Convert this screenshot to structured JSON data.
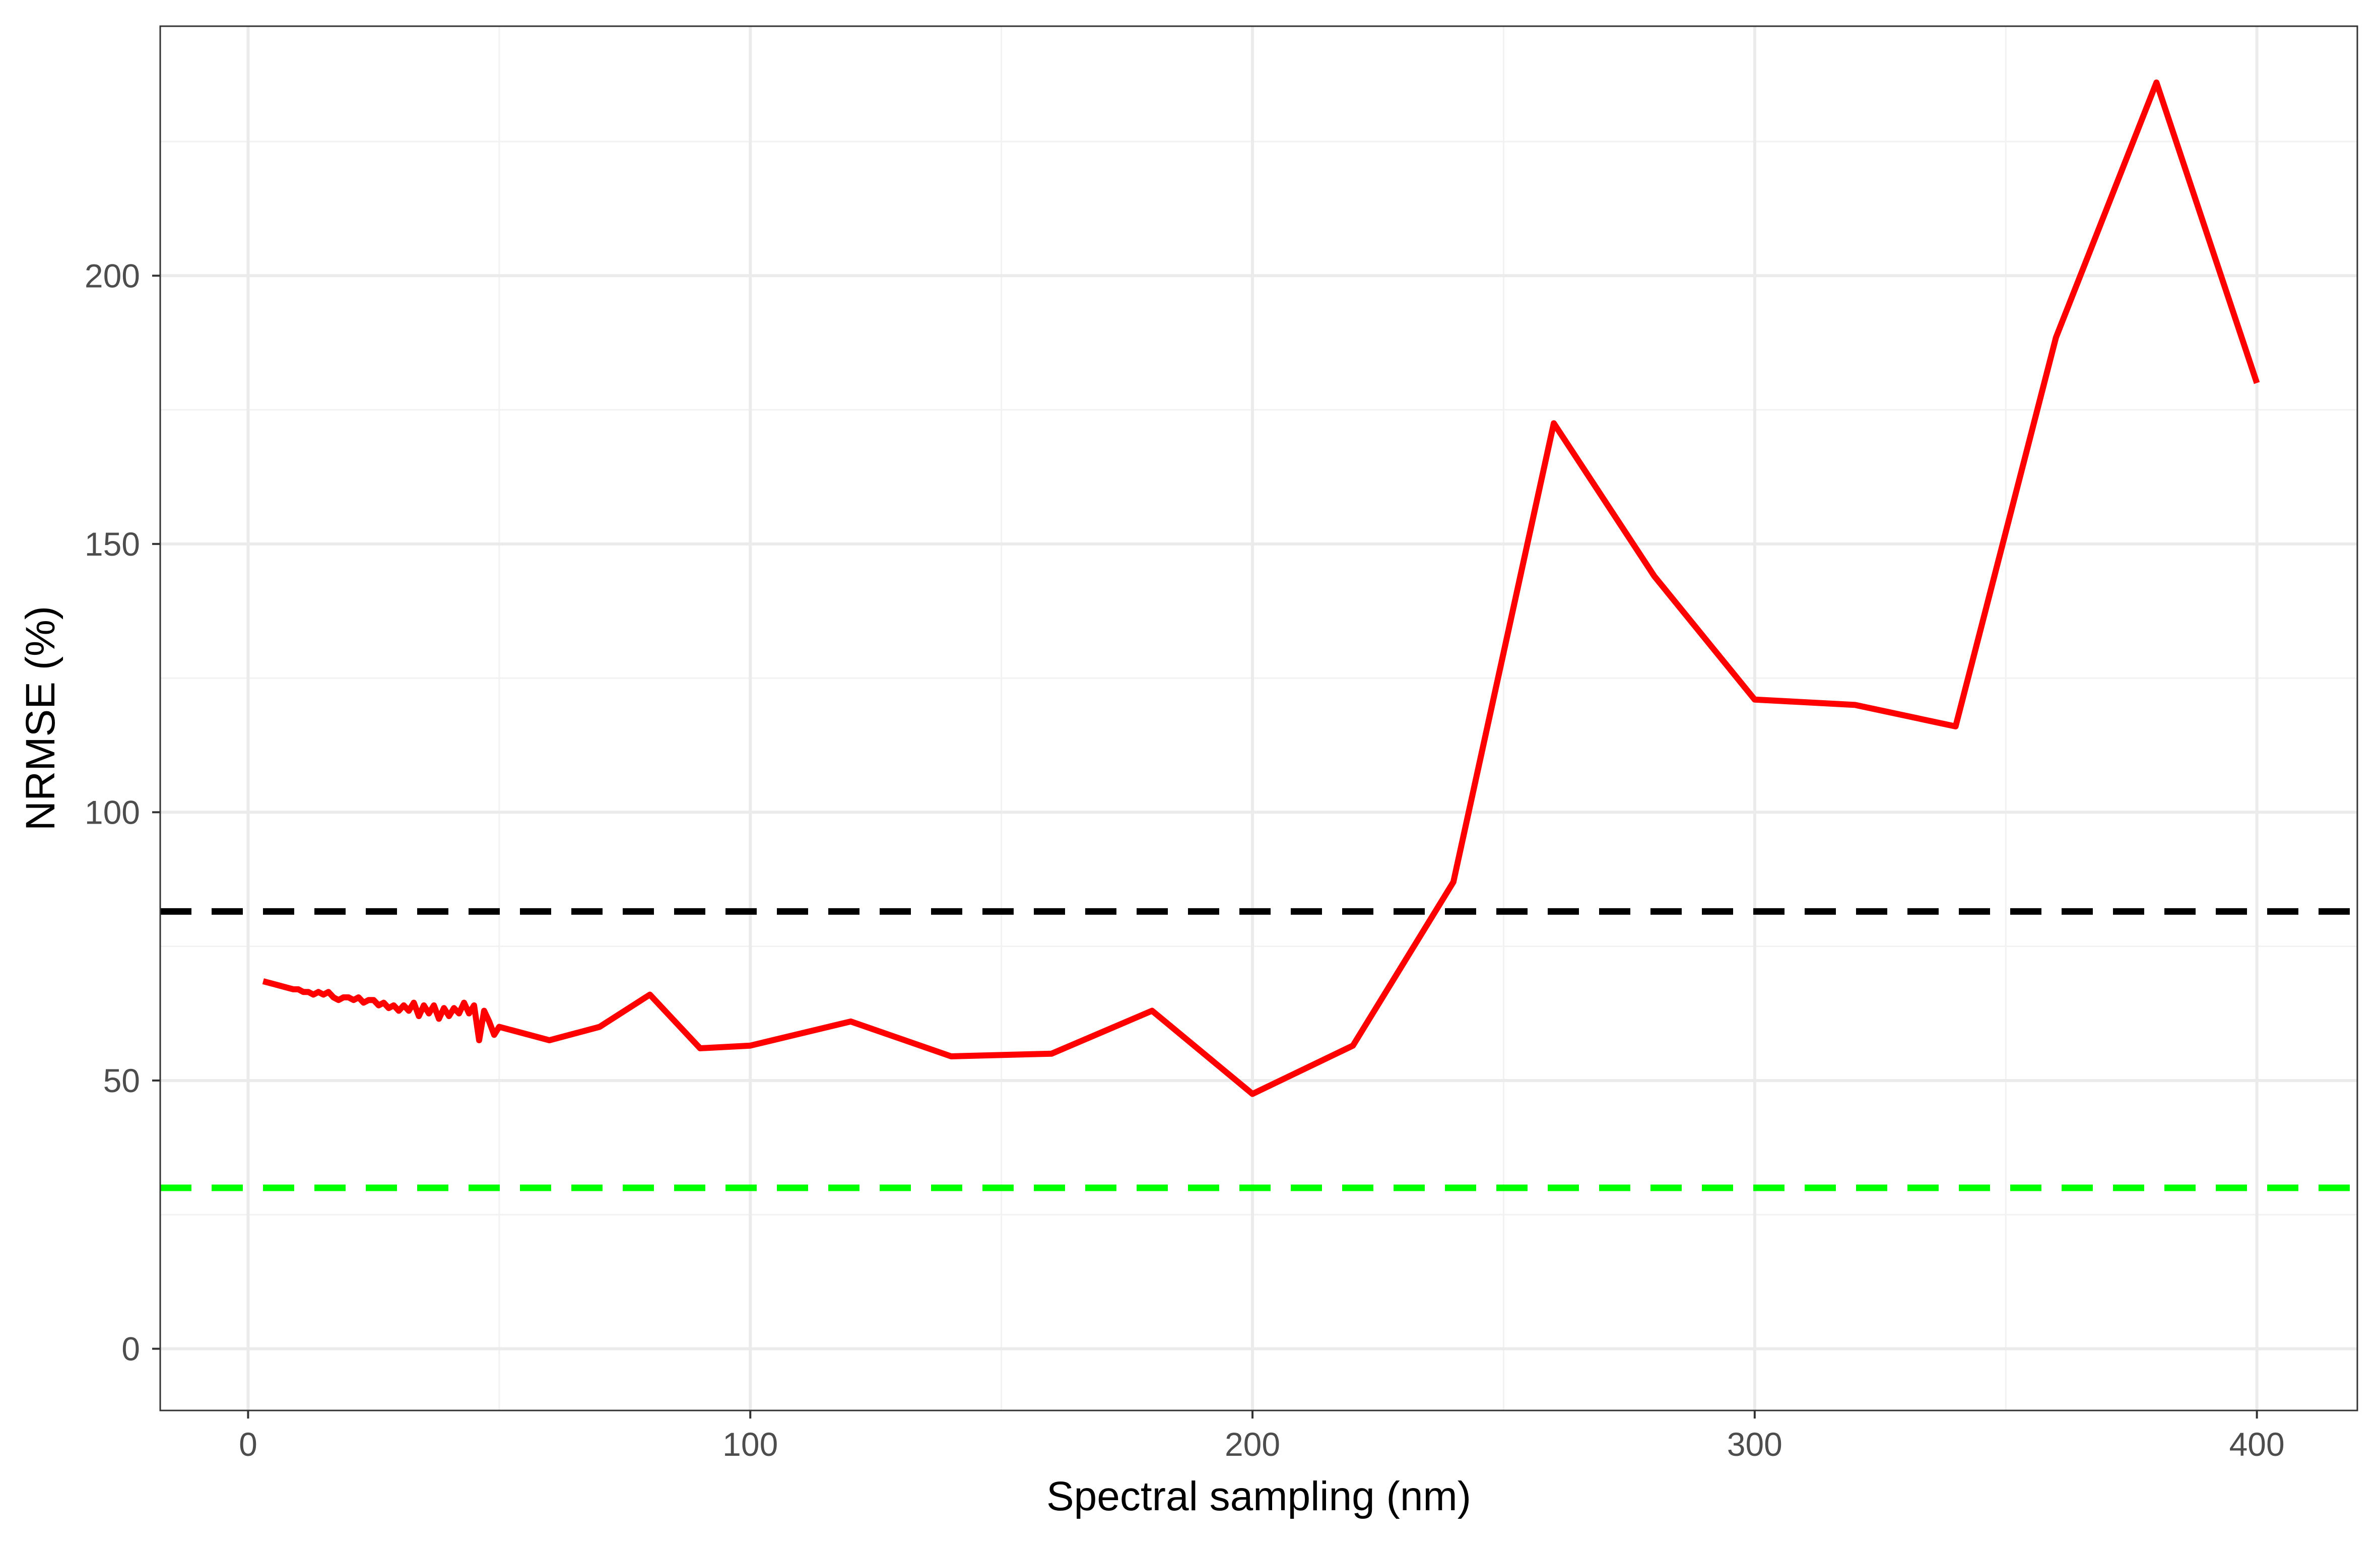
{
  "chart_data": {
    "type": "line",
    "title": "",
    "xlabel": "Spectral sampling (nm)",
    "ylabel": "NRMSE (%)",
    "xlim": [
      -17.5,
      420
    ],
    "ylim": [
      -11.5,
      246.5
    ],
    "x_ticks": [
      0,
      100,
      200,
      300,
      400
    ],
    "x_minor_ticks": [
      50,
      150,
      250,
      350
    ],
    "y_ticks": [
      0,
      50,
      100,
      150,
      200
    ],
    "y_minor_ticks": [
      25,
      75,
      125,
      175,
      225
    ],
    "grid": true,
    "legend": "none",
    "series": [
      {
        "color": "#FF0000",
        "style": "solid",
        "x": [
          3,
          5,
          7,
          9,
          10,
          11,
          12,
          13,
          14,
          15,
          16,
          17,
          18,
          19,
          20,
          21,
          22,
          23,
          24,
          25,
          26,
          27,
          28,
          29,
          30,
          31,
          32,
          33,
          34,
          35,
          36,
          37,
          38,
          39,
          40,
          41,
          42,
          43,
          44,
          45,
          46,
          47,
          48,
          49,
          50,
          60,
          70,
          80,
          90,
          100,
          120,
          140,
          160,
          180,
          200,
          220,
          240,
          260,
          280,
          300,
          320,
          340,
          360,
          380,
          400
        ],
        "y": [
          68.5,
          68,
          67.5,
          67,
          67,
          66.5,
          66.5,
          66,
          66.5,
          66,
          66.5,
          65.5,
          65,
          65.5,
          65.5,
          65,
          65.5,
          64.5,
          65,
          65,
          64,
          64.5,
          63.5,
          64,
          63,
          64,
          63,
          64.5,
          62,
          64,
          62.5,
          64,
          61.5,
          63.5,
          62,
          63.5,
          62.5,
          64.5,
          62.5,
          64,
          57.5,
          63,
          61,
          58.5,
          60,
          57.5,
          60,
          66,
          56,
          56.5,
          61,
          54.5,
          55,
          63,
          47.5,
          56.5,
          87,
          172.5,
          144,
          121,
          120,
          116,
          188.5,
          236,
          180
        ]
      },
      {
        "color": "#000000",
        "style": "dashed",
        "x": [
          -17.5,
          420
        ],
        "y": [
          81.5,
          81.5
        ]
      },
      {
        "color": "#00FF00",
        "style": "dashed",
        "x": [
          -17.5,
          420
        ],
        "y": [
          30,
          30
        ]
      }
    ]
  }
}
